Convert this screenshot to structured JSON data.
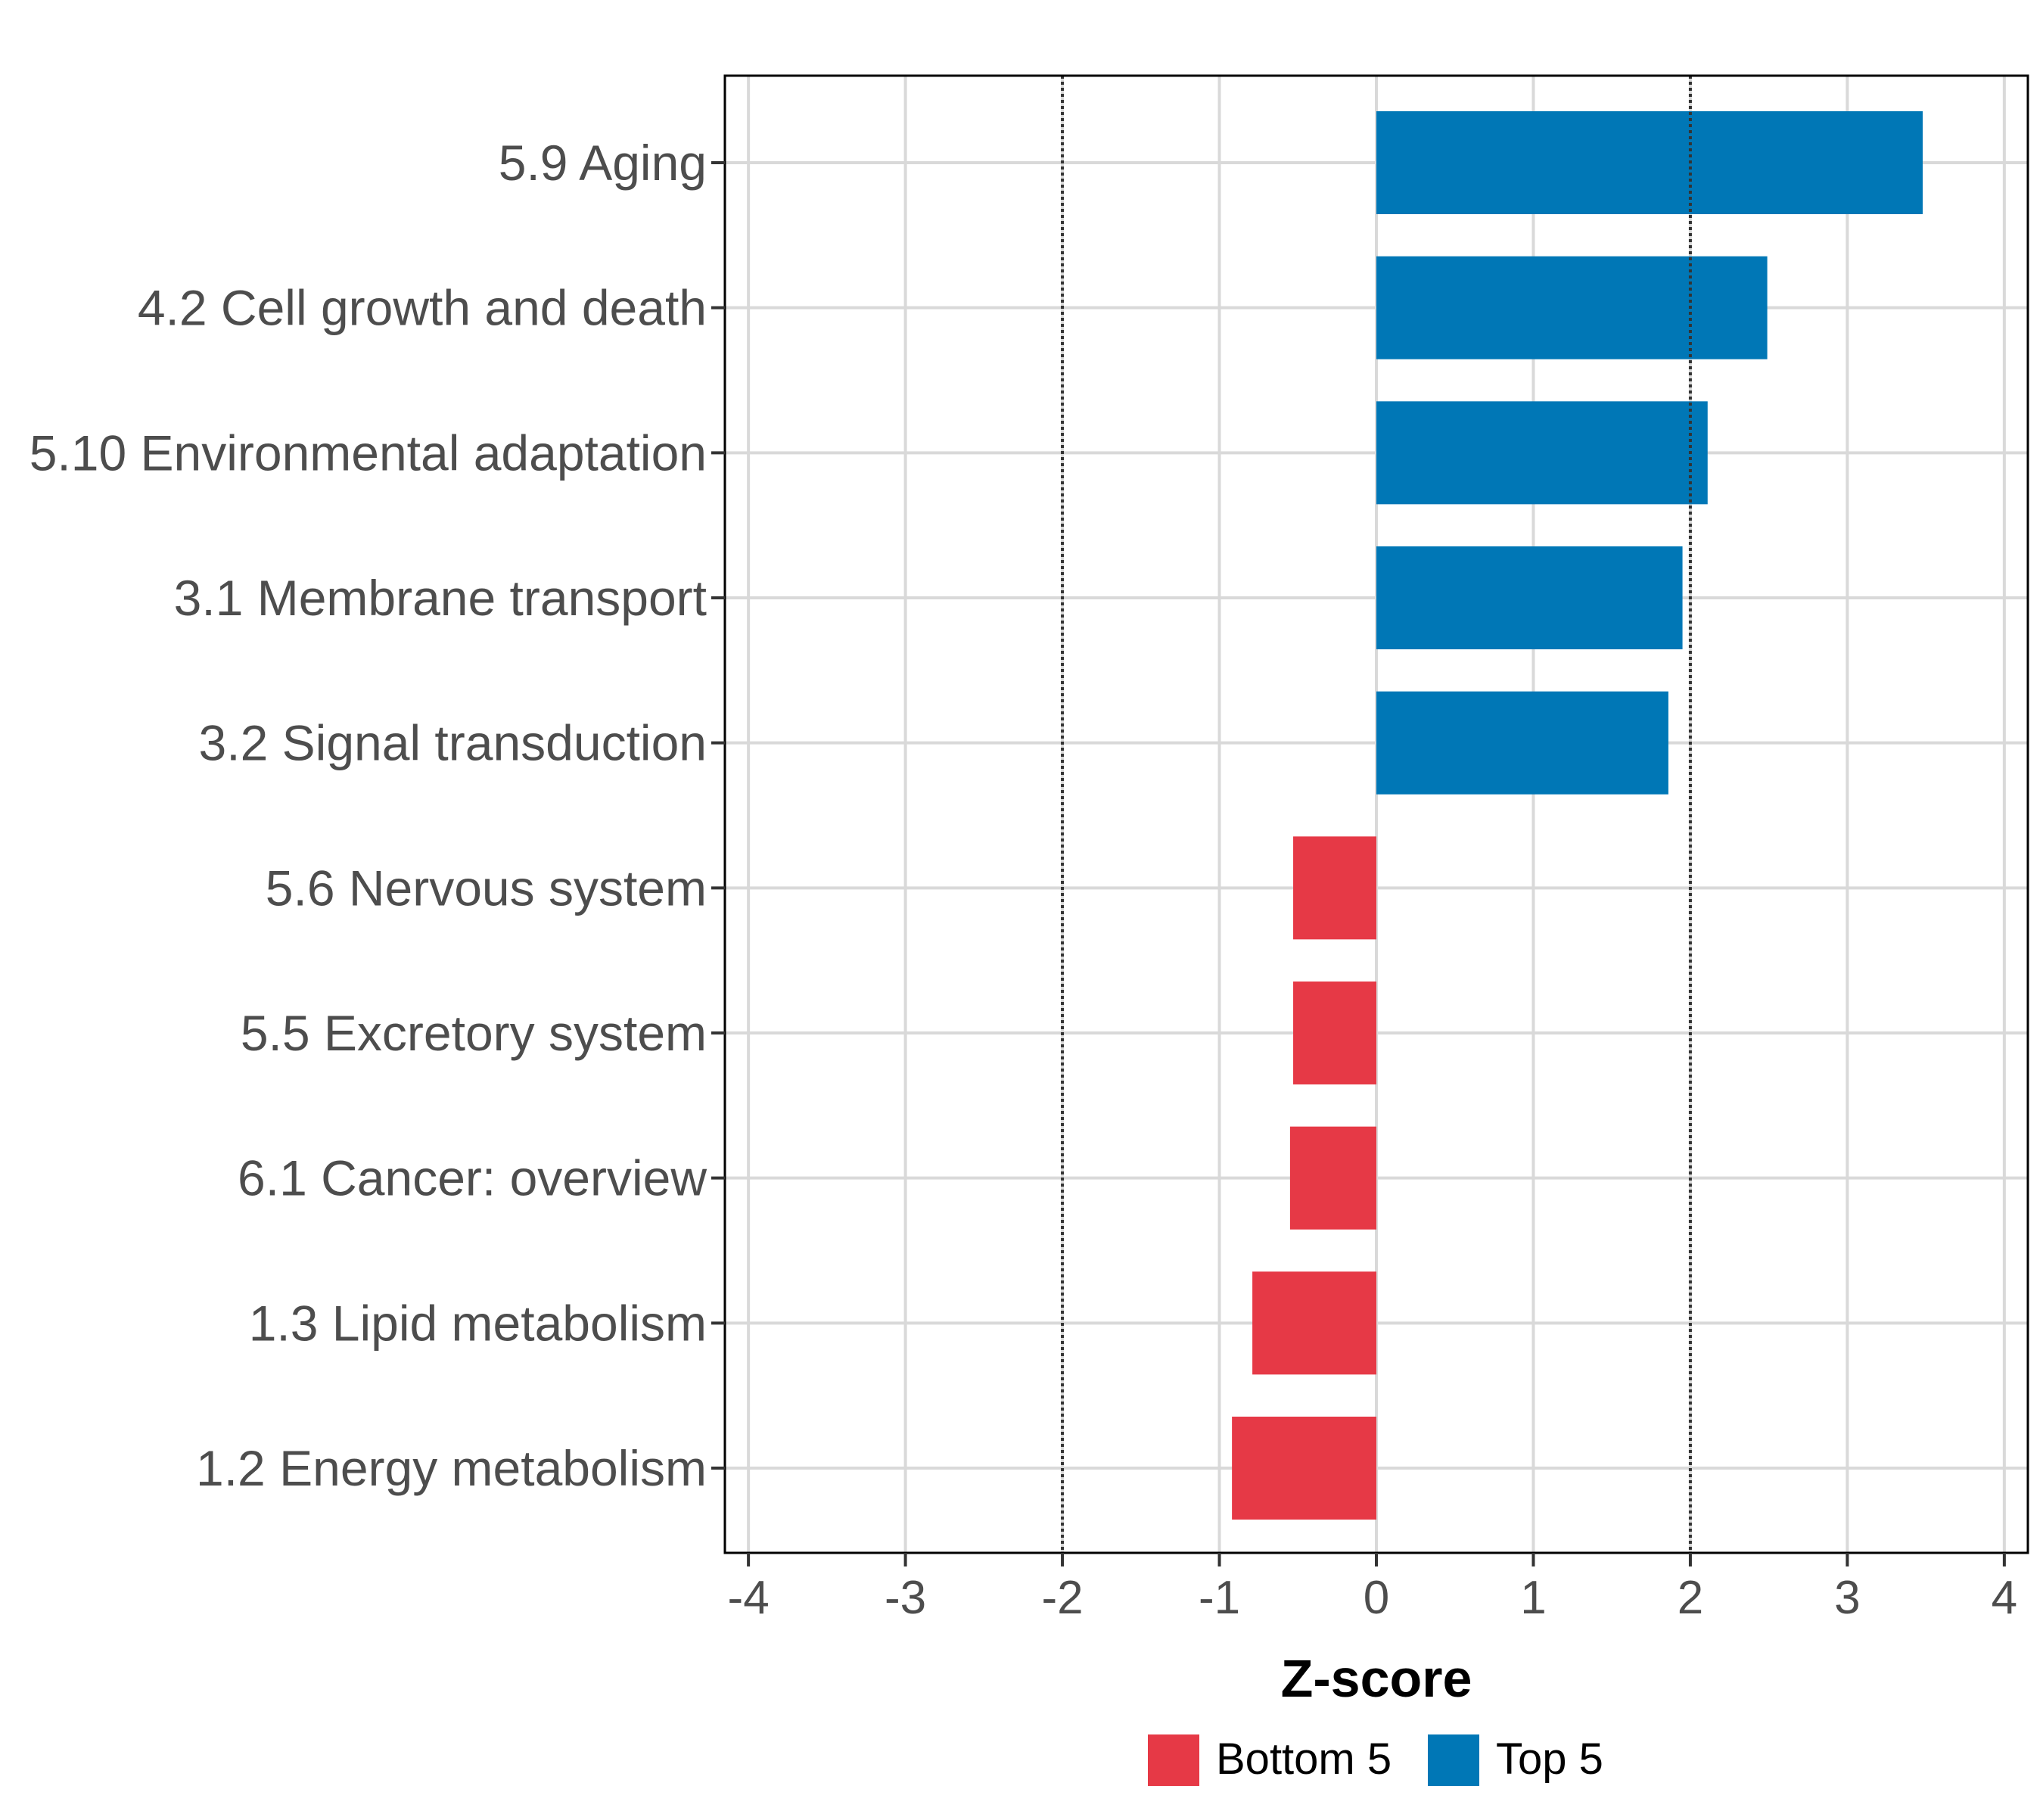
{
  "chart_data": {
    "type": "bar",
    "orientation": "horizontal",
    "title": "",
    "xlabel": "Z-score",
    "ylabel": "",
    "xlim": [
      -4.15,
      4.15
    ],
    "x_ticks": [
      -4,
      -3,
      -2,
      -1,
      0,
      1,
      2,
      3,
      4
    ],
    "x_tick_labels": [
      "-4",
      "-3",
      "-2",
      "-1",
      "0",
      "1",
      "2",
      "3",
      "4"
    ],
    "reference_lines": [
      -2,
      2
    ],
    "grid": true,
    "legend_position": "bottom",
    "categories": [
      "5.9 Aging",
      "4.2 Cell growth and death",
      "5.10 Environmental adaptation",
      "3.1 Membrane transport",
      "3.2 Signal transduction",
      "5.6 Nervous system",
      "5.5 Excretory system",
      "6.1 Cancer: overview",
      "1.3 Lipid metabolism",
      "1.2 Energy metabolism"
    ],
    "values": [
      3.48,
      2.49,
      2.11,
      1.95,
      1.86,
      -0.53,
      -0.53,
      -0.55,
      -0.79,
      -0.92
    ],
    "groups": [
      "Top 5",
      "Top 5",
      "Top 5",
      "Top 5",
      "Top 5",
      "Bottom 5",
      "Bottom 5",
      "Bottom 5",
      "Bottom 5",
      "Bottom 5"
    ],
    "legend": [
      {
        "name": "Bottom 5",
        "color": "#e63946"
      },
      {
        "name": "Top 5",
        "color": "#0077b6"
      }
    ]
  }
}
